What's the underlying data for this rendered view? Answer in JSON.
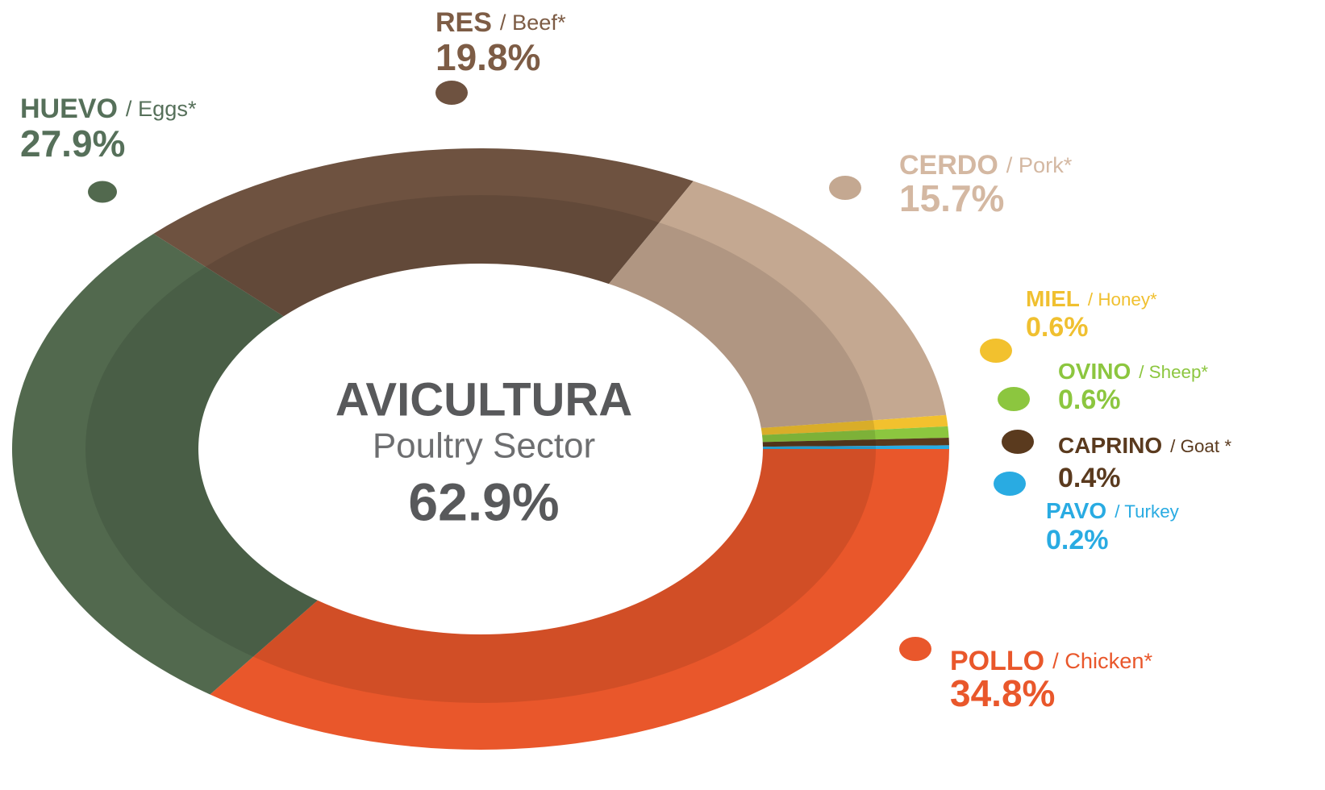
{
  "chart_data": {
    "type": "donut",
    "center_title": "AVICULTURA",
    "center_subtitle": "Poultry Sector",
    "center_value_label": "62.9%",
    "categories": [
      "POLLO",
      "HUEVO",
      "RES",
      "CERDO",
      "MIEL",
      "OVINO",
      "CAPRINO",
      "PAVO"
    ],
    "translations": [
      "/ Chicken*",
      "/ Eggs*",
      "/ Beef*",
      "/ Pork*",
      "/ Honey*",
      "/ Sheep*",
      "/ Goat *",
      "/ Turkey"
    ],
    "values": [
      34.8,
      27.9,
      19.8,
      15.7,
      0.6,
      0.6,
      0.4,
      0.2
    ],
    "value_labels": [
      "34.8%",
      "27.9%",
      "19.8%",
      "15.7%",
      "0.6%",
      "0.6%",
      "0.4%",
      "0.2%"
    ],
    "colors": [
      "#e9572b",
      "#52694e",
      "#6e5240",
      "#c4a891",
      "#f2c12e",
      "#8cc63f",
      "#5a3a1e",
      "#29abe2"
    ],
    "label_colors": [
      "#e9572b",
      "#56705a",
      "#7d5c45",
      "#d4b8a2",
      "#f0c030",
      "#8cc63f",
      "#5a3a1e",
      "#29abe2"
    ]
  }
}
